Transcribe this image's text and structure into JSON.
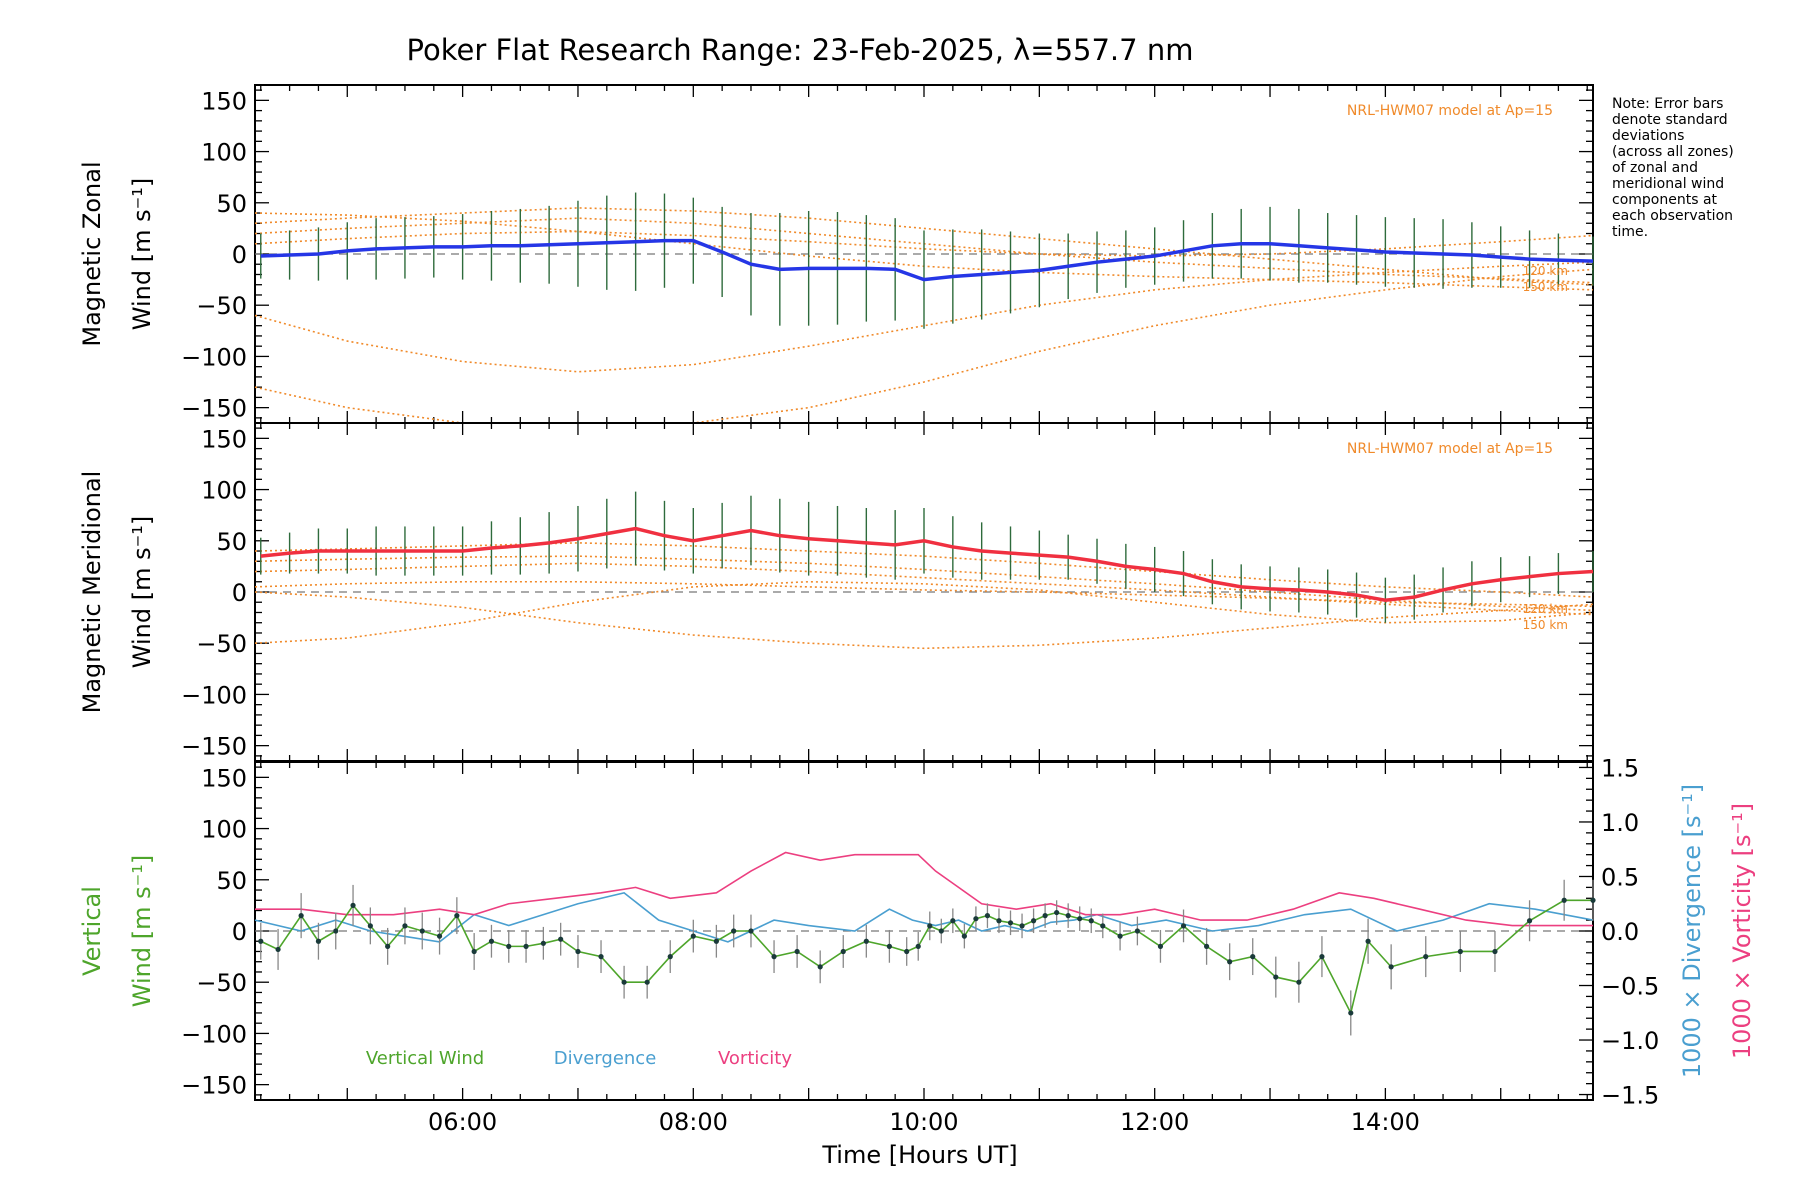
{
  "figure": {
    "title": "Poker Flat Research Range: 23-Feb-2025, λ=557.7 nm",
    "note_lines": [
      "Note: Error bars",
      "denote standard",
      "deviations",
      "(across all zones)",
      "of zonal and",
      "meridional wind",
      "components at",
      "each observation",
      "time."
    ]
  },
  "colors": {
    "zonal": "#2536e6",
    "meridional": "#f03040",
    "vertical": "#4ea52b",
    "divergence": "#4a9fd0",
    "vorticity": "#ec3f80",
    "model": "#f08a2a",
    "points": "#1a3a3a"
  },
  "chart_data": [
    {
      "type": "line",
      "panel": "zonal",
      "ylabel_line1": "Magnetic Zonal",
      "ylabel_line2": "Wind [m s⁻¹]",
      "model_label": "NRL-HWM07 model at Ap=15",
      "alt_labels": [
        "120 km",
        "150 km"
      ],
      "xlim": [
        4.2,
        15.8
      ],
      "ylim": [
        -165,
        165
      ],
      "yticks": [
        -150,
        -100,
        -50,
        0,
        50,
        100,
        150
      ],
      "x": [
        4.25,
        4.5,
        4.75,
        5.0,
        5.25,
        5.5,
        5.75,
        6.0,
        6.25,
        6.5,
        6.75,
        7.0,
        7.25,
        7.5,
        7.75,
        8.0,
        8.25,
        8.5,
        8.75,
        9.0,
        9.25,
        9.5,
        9.75,
        10.0,
        10.25,
        10.5,
        10.75,
        11.0,
        11.25,
        11.5,
        11.75,
        12.0,
        12.25,
        12.5,
        12.75,
        13.0,
        13.25,
        13.5,
        13.75,
        14.0,
        14.25,
        14.5,
        14.75,
        15.0,
        15.25,
        15.5,
        15.8
      ],
      "values": [
        -2,
        -1,
        0,
        3,
        5,
        6,
        7,
        7,
        8,
        8,
        9,
        10,
        11,
        12,
        13,
        13,
        2,
        -10,
        -15,
        -14,
        -14,
        -14,
        -15,
        -25,
        -22,
        -20,
        -18,
        -16,
        -12,
        -8,
        -5,
        -2,
        3,
        8,
        10,
        10,
        8,
        6,
        4,
        2,
        1,
        0,
        -1,
        -3,
        -5,
        -6,
        -7
      ],
      "err": [
        22,
        24,
        26,
        28,
        30,
        30,
        30,
        32,
        34,
        36,
        38,
        42,
        46,
        48,
        46,
        42,
        44,
        50,
        55,
        56,
        55,
        52,
        50,
        48,
        46,
        44,
        40,
        36,
        32,
        30,
        28,
        28,
        30,
        32,
        34,
        36,
        36,
        34,
        34,
        34,
        34,
        34,
        32,
        30,
        28,
        26,
        24
      ],
      "model_curves": [
        {
          "name": "model-1",
          "x": [
            4.2,
            5.0,
            6.0,
            7.0,
            8.0,
            9.0,
            10.0,
            11.0,
            12.0,
            13.0,
            14.0,
            15.0,
            15.8
          ],
          "values": [
            -60,
            -85,
            -105,
            -115,
            -108,
            -90,
            -70,
            -50,
            -35,
            -25,
            -18,
            -12,
            -8
          ]
        },
        {
          "name": "model-2",
          "x": [
            4.2,
            5.0,
            6.0,
            7.0,
            8.0,
            9.0,
            10.0,
            11.0,
            12.0,
            13.0,
            14.0,
            15.0,
            15.8
          ],
          "values": [
            -130,
            -150,
            -168,
            -170,
            -165,
            -150,
            -125,
            -95,
            -70,
            -50,
            -35,
            -22,
            -15
          ]
        },
        {
          "name": "model-3",
          "x": [
            4.2,
            5.0,
            6.0,
            7.0,
            8.0,
            9.0,
            10.0,
            11.0,
            12.0,
            13.0,
            14.0,
            15.0,
            15.8
          ],
          "values": [
            40,
            38,
            32,
            22,
            10,
            -2,
            -12,
            -18,
            -22,
            -25,
            -28,
            -32,
            -35
          ]
        },
        {
          "name": "model-4",
          "x": [
            4.2,
            5.0,
            6.0,
            7.0,
            8.0,
            9.0,
            10.0,
            11.0,
            12.0,
            13.0,
            14.0,
            15.0,
            15.8
          ],
          "values": [
            30,
            35,
            40,
            45,
            42,
            35,
            25,
            15,
            5,
            -5,
            -15,
            -25,
            -30
          ]
        },
        {
          "name": "model-5",
          "x": [
            4.2,
            5.0,
            6.0,
            7.0,
            8.0,
            9.0,
            10.0,
            11.0,
            12.0,
            13.0,
            14.0,
            15.0,
            15.8
          ],
          "values": [
            20,
            25,
            30,
            35,
            30,
            20,
            10,
            0,
            -8,
            -14,
            -20,
            -24,
            -28
          ]
        },
        {
          "name": "model-6",
          "x": [
            4.2,
            5.0,
            6.0,
            7.0,
            8.0,
            9.0,
            10.0,
            11.0,
            12.0,
            13.0,
            14.0,
            15.0,
            15.8
          ],
          "values": [
            10,
            15,
            20,
            22,
            18,
            12,
            5,
            0,
            -2,
            0,
            5,
            12,
            18
          ]
        }
      ]
    },
    {
      "type": "line",
      "panel": "meridional",
      "ylabel_line1": "Magnetic Meridional",
      "ylabel_line2": "Wind [m s⁻¹]",
      "model_label": "NRL-HWM07 model at Ap=15",
      "alt_labels": [
        "120 km",
        "150 km"
      ],
      "xlim": [
        4.2,
        15.8
      ],
      "ylim": [
        -165,
        165
      ],
      "yticks": [
        -150,
        -100,
        -50,
        0,
        50,
        100,
        150
      ],
      "x": [
        4.25,
        4.5,
        4.75,
        5.0,
        5.25,
        5.5,
        5.75,
        6.0,
        6.25,
        6.5,
        6.75,
        7.0,
        7.25,
        7.5,
        7.75,
        8.0,
        8.25,
        8.5,
        8.75,
        9.0,
        9.25,
        9.5,
        9.75,
        10.0,
        10.25,
        10.5,
        10.75,
        11.0,
        11.25,
        11.5,
        11.75,
        12.0,
        12.25,
        12.5,
        12.75,
        13.0,
        13.25,
        13.5,
        13.75,
        14.0,
        14.25,
        14.5,
        14.75,
        15.0,
        15.25,
        15.5,
        15.8
      ],
      "values": [
        35,
        38,
        40,
        40,
        40,
        40,
        40,
        40,
        43,
        45,
        48,
        52,
        57,
        62,
        55,
        50,
        55,
        60,
        55,
        52,
        50,
        48,
        46,
        50,
        44,
        40,
        38,
        36,
        34,
        30,
        25,
        22,
        18,
        10,
        5,
        3,
        2,
        0,
        -3,
        -8,
        -5,
        2,
        8,
        12,
        15,
        18,
        20
      ],
      "err": [
        18,
        20,
        22,
        22,
        24,
        24,
        24,
        24,
        26,
        28,
        30,
        32,
        34,
        36,
        34,
        32,
        32,
        34,
        36,
        36,
        34,
        34,
        34,
        32,
        30,
        28,
        26,
        24,
        22,
        22,
        22,
        22,
        22,
        22,
        22,
        22,
        22,
        22,
        22,
        22,
        22,
        22,
        22,
        22,
        20,
        20,
        20
      ],
      "model_curves": [
        {
          "name": "model-1",
          "x": [
            4.2,
            5.0,
            6.0,
            7.0,
            8.0,
            9.0,
            10.0,
            11.0,
            12.0,
            13.0,
            14.0,
            15.0,
            15.8
          ],
          "values": [
            -50,
            -45,
            -30,
            -10,
            5,
            10,
            8,
            2,
            -10,
            -22,
            -30,
            -28,
            -20
          ]
        },
        {
          "name": "model-2",
          "x": [
            4.2,
            5.0,
            6.0,
            7.0,
            8.0,
            9.0,
            10.0,
            11.0,
            12.0,
            13.0,
            14.0,
            15.0,
            15.8
          ],
          "values": [
            0,
            -5,
            -15,
            -30,
            -42,
            -50,
            -55,
            -52,
            -45,
            -35,
            -25,
            -18,
            -12
          ]
        },
        {
          "name": "model-3",
          "x": [
            4.2,
            5.0,
            6.0,
            7.0,
            8.0,
            9.0,
            10.0,
            11.0,
            12.0,
            13.0,
            14.0,
            15.0,
            15.8
          ],
          "values": [
            40,
            42,
            45,
            48,
            45,
            40,
            35,
            28,
            20,
            12,
            5,
            0,
            -5
          ]
        },
        {
          "name": "model-4",
          "x": [
            4.2,
            5.0,
            6.0,
            7.0,
            8.0,
            9.0,
            10.0,
            11.0,
            12.0,
            13.0,
            14.0,
            15.0,
            15.8
          ],
          "values": [
            30,
            32,
            34,
            35,
            32,
            28,
            22,
            15,
            8,
            0,
            -8,
            -14,
            -18
          ]
        },
        {
          "name": "model-5",
          "x": [
            4.2,
            5.0,
            6.0,
            7.0,
            8.0,
            9.0,
            10.0,
            11.0,
            12.0,
            13.0,
            14.0,
            15.0,
            15.8
          ],
          "values": [
            5,
            8,
            10,
            10,
            8,
            5,
            2,
            0,
            -3,
            -6,
            -10,
            -12,
            -14
          ]
        },
        {
          "name": "model-6",
          "x": [
            4.2,
            5.0,
            6.0,
            7.0,
            8.0,
            9.0,
            10.0,
            11.0,
            12.0,
            13.0,
            14.0,
            15.0,
            15.8
          ],
          "values": [
            20,
            22,
            25,
            28,
            25,
            20,
            14,
            8,
            2,
            -5,
            -12,
            -18,
            -22
          ]
        }
      ]
    },
    {
      "type": "line",
      "panel": "vertical",
      "ylabel_line1": "Vertical",
      "ylabel_line2": "Wind [m s⁻¹]",
      "ylabel_right1": "1000 × Divergence [s⁻¹]",
      "ylabel_right2": "1000 × Vorticity [s⁻¹]",
      "xlabel": "Time [Hours UT]",
      "xlim": [
        4.2,
        15.8
      ],
      "ylim": [
        -165,
        165
      ],
      "ylim_right": [
        -1.55,
        1.55
      ],
      "yticks": [
        -150,
        -100,
        -50,
        0,
        50,
        100,
        150
      ],
      "yticks_right": [
        -1.5,
        -1.0,
        -0.5,
        0.0,
        0.5,
        1.0,
        1.5
      ],
      "yticks_right_labels": [
        "−1.5",
        "−1.0",
        "−0.5",
        "0.0",
        "0.5",
        "1.0",
        "1.5"
      ],
      "xticks": [
        6,
        8,
        10,
        12,
        14
      ],
      "xtick_labels": [
        "06:00",
        "08:00",
        "10:00",
        "12:00",
        "14:00"
      ],
      "legend": [
        "Vertical Wind",
        "Divergence",
        "Vorticity"
      ],
      "vertical_wind": {
        "x": [
          4.25,
          4.4,
          4.6,
          4.75,
          4.9,
          5.05,
          5.2,
          5.35,
          5.5,
          5.65,
          5.8,
          5.95,
          6.1,
          6.25,
          6.4,
          6.55,
          6.7,
          6.85,
          7.0,
          7.2,
          7.4,
          7.6,
          7.8,
          8.0,
          8.2,
          8.35,
          8.5,
          8.7,
          8.9,
          9.1,
          9.3,
          9.5,
          9.7,
          9.85,
          9.95,
          10.05,
          10.15,
          10.25,
          10.35,
          10.45,
          10.55,
          10.65,
          10.75,
          10.85,
          10.95,
          11.05,
          11.15,
          11.25,
          11.35,
          11.45,
          11.55,
          11.7,
          11.85,
          12.05,
          12.25,
          12.45,
          12.65,
          12.85,
          13.05,
          13.25,
          13.45,
          13.7,
          13.85,
          14.05,
          14.35,
          14.65,
          14.95,
          15.25,
          15.55,
          15.8
        ],
        "values": [
          -10,
          -18,
          15,
          -10,
          0,
          25,
          5,
          -15,
          5,
          0,
          -5,
          15,
          -20,
          -10,
          -15,
          -15,
          -12,
          -8,
          -20,
          -25,
          -50,
          -50,
          -25,
          -5,
          -10,
          0,
          0,
          -25,
          -20,
          -35,
          -20,
          -10,
          -15,
          -20,
          -15,
          5,
          0,
          10,
          -5,
          12,
          15,
          10,
          8,
          5,
          10,
          15,
          18,
          15,
          12,
          10,
          5,
          -5,
          0,
          -15,
          5,
          -15,
          -30,
          -25,
          -45,
          -50,
          -25,
          -80,
          -10,
          -35,
          -25,
          -20,
          -20,
          10,
          30,
          30
        ],
        "err": [
          18,
          20,
          22,
          18,
          18,
          20,
          18,
          18,
          18,
          18,
          18,
          18,
          18,
          16,
          16,
          16,
          16,
          16,
          16,
          16,
          16,
          16,
          16,
          16,
          16,
          16,
          16,
          16,
          16,
          16,
          16,
          16,
          16,
          14,
          14,
          14,
          12,
          12,
          12,
          12,
          12,
          12,
          12,
          12,
          12,
          12,
          12,
          12,
          12,
          12,
          12,
          14,
          14,
          16,
          16,
          18,
          18,
          18,
          20,
          20,
          20,
          22,
          22,
          22,
          20,
          20,
          20,
          20,
          20,
          20
        ]
      },
      "divergence": {
        "x": [
          4.2,
          4.6,
          4.9,
          5.2,
          5.5,
          5.8,
          6.1,
          6.4,
          6.7,
          7.0,
          7.4,
          7.7,
          8.0,
          8.3,
          8.7,
          9.0,
          9.4,
          9.7,
          9.9,
          10.1,
          10.3,
          10.5,
          10.7,
          10.9,
          11.1,
          11.3,
          11.5,
          11.8,
          12.1,
          12.5,
          12.9,
          13.3,
          13.7,
          14.1,
          14.5,
          14.9,
          15.3,
          15.8
        ],
        "values": [
          0.1,
          0.0,
          0.1,
          0.0,
          -0.05,
          -0.1,
          0.15,
          0.05,
          0.15,
          0.25,
          0.35,
          0.1,
          0.0,
          -0.1,
          0.1,
          0.05,
          0.0,
          0.2,
          0.1,
          0.05,
          0.1,
          0.0,
          0.05,
          0.0,
          0.08,
          0.1,
          0.15,
          0.05,
          0.1,
          0.0,
          0.05,
          0.15,
          0.2,
          0.0,
          0.1,
          0.25,
          0.2,
          0.1
        ]
      },
      "vorticity": {
        "x": [
          4.2,
          4.6,
          5.0,
          5.4,
          5.8,
          6.1,
          6.4,
          6.8,
          7.2,
          7.5,
          7.8,
          8.2,
          8.5,
          8.8,
          9.1,
          9.4,
          9.7,
          9.95,
          10.1,
          10.3,
          10.5,
          10.8,
          11.1,
          11.4,
          11.7,
          12.0,
          12.4,
          12.8,
          13.2,
          13.6,
          13.9,
          14.3,
          14.7,
          15.1,
          15.5,
          15.8
        ],
        "values": [
          0.2,
          0.2,
          0.15,
          0.15,
          0.2,
          0.15,
          0.25,
          0.3,
          0.35,
          0.4,
          0.3,
          0.35,
          0.55,
          0.72,
          0.65,
          0.7,
          0.7,
          0.7,
          0.55,
          0.4,
          0.25,
          0.2,
          0.25,
          0.15,
          0.15,
          0.2,
          0.1,
          0.1,
          0.2,
          0.35,
          0.3,
          0.2,
          0.1,
          0.05,
          0.05,
          0.05
        ]
      }
    }
  ]
}
